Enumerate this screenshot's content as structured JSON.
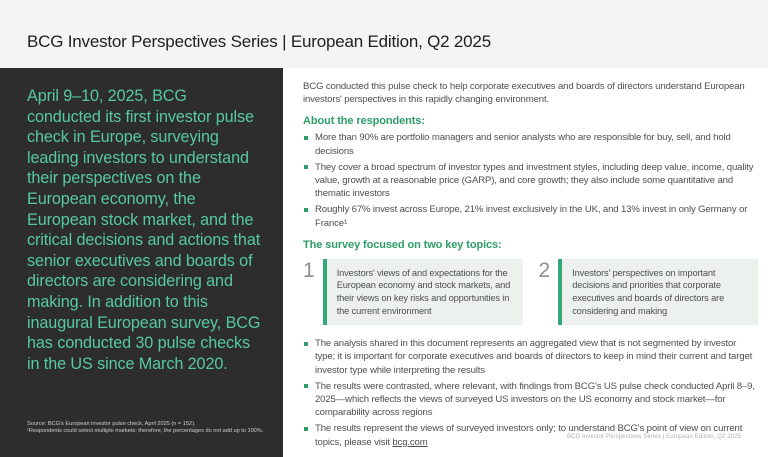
{
  "header": {
    "title": "BCG Investor Perspectives Series | European Edition, Q2 2025"
  },
  "sidebar": {
    "statement": "April 9–10, 2025, BCG conducted its first investor pulse check in Europe, surveying leading investors to understand their perspectives on the European economy, the European stock market, and the critical decisions and actions that senior executives and boards of directors are considering and making. In addition to this inaugural European survey, BCG has conducted 30 pulse checks in the US since March 2020.",
    "footnotes": [
      "Source: BCG's European investor pulse check, April 2025 (n = 152).",
      "¹Respondents could select multiple markets; therefore, the percentages do not add up to 100%."
    ]
  },
  "main": {
    "intro": "BCG conducted this pulse check to help corporate executives and boards of directors understand European investors' perspectives in this rapidly changing environment.",
    "about_heading": "About the respondents:",
    "about_bullets": [
      "More than 90% are portfolio managers and senior analysts who are responsible for buy, sell, and hold decisions",
      "They cover a broad spectrum of investor types and investment styles, including deep value, income, quality value, growth at a reasonable price (GARP), and core growth; they also include some quantitative and thematic investors",
      "Roughly 67% invest across Europe, 21% invest exclusively in the UK, and 13% invest in only Germany or France¹"
    ],
    "topics_heading": "The survey focused on two key topics:",
    "topics": [
      {
        "number": "1",
        "text": "Investors' views of and expectations for the European economy and stock markets, and their views on key risks and opportunities in the current environment"
      },
      {
        "number": "2",
        "text": "Investors' perspectives on important decisions and priorities that corporate executives and boards of directors are considering and making"
      }
    ],
    "notes_bullets": [
      "The analysis shared in this document represents an aggregated view that is not segmented by investor type; it is important for corporate executives and boards of directors to keep in mind their current and target investor type while interpreting the results",
      "The results were contrasted, where relevant, with findings from BCG's US pulse check conducted April 8–9, 2025—which reflects the views of surveyed US investors on the US economy and stock market—for comparability across regions"
    ],
    "last_bullet": {
      "prefix": "The results represent the views of surveyed investors only; to understand BCG's point of view on current topics, please visit ",
      "link": "bcg.com"
    }
  },
  "footer": {
    "text": "BCG Investor Perspectives Series | European Edition, Q2 2025"
  },
  "colors": {
    "header_bg": "#f4f4f2",
    "panel_bg": "#2d2d2d",
    "panel_text_green": "#56c9a0",
    "accent_green": "#2e9d68",
    "topic_box_bg": "#edf1ee",
    "topic_box_border": "#35a878",
    "body_text": "#4f4f4f",
    "footer_text": "#b0b0b0"
  }
}
